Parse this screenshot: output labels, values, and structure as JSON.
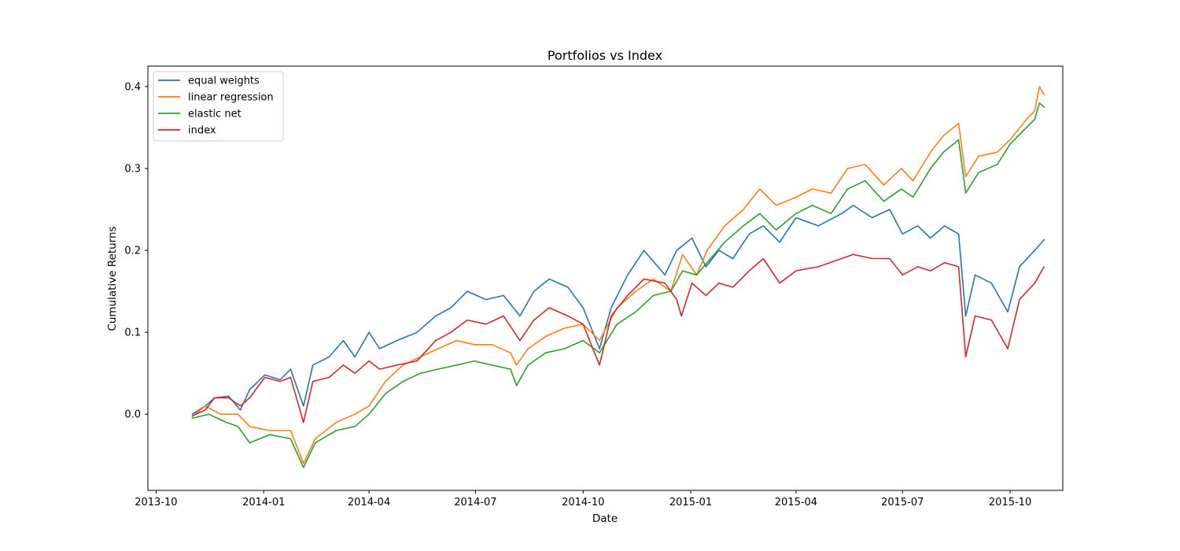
{
  "chart_data": {
    "type": "line",
    "title": "Portfolios vs Index",
    "xlabel": "Date",
    "ylabel": "Cumulative Returns",
    "x_range": [
      "2013-09-24",
      "2015-11-15"
    ],
    "ylim": [
      -0.093,
      0.425
    ],
    "x_ticks": [
      {
        "date": "2013-10-01",
        "label": "2013-10"
      },
      {
        "date": "2014-01-01",
        "label": "2014-01"
      },
      {
        "date": "2014-04-01",
        "label": "2014-04"
      },
      {
        "date": "2014-07-01",
        "label": "2014-07"
      },
      {
        "date": "2014-10-01",
        "label": "2014-10"
      },
      {
        "date": "2015-01-01",
        "label": "2015-01"
      },
      {
        "date": "2015-04-01",
        "label": "2015-04"
      },
      {
        "date": "2015-07-01",
        "label": "2015-07"
      },
      {
        "date": "2015-10-01",
        "label": "2015-10"
      }
    ],
    "y_ticks": [
      {
        "value": 0.0,
        "label": "0.0"
      },
      {
        "value": 0.1,
        "label": "0.1"
      },
      {
        "value": 0.2,
        "label": "0.2"
      },
      {
        "value": 0.3,
        "label": "0.3"
      },
      {
        "value": 0.4,
        "label": "0.4"
      }
    ],
    "grid": false,
    "legend_position": "top-left",
    "series": [
      {
        "name": "equal weights",
        "color": "#1f77b4",
        "points": [
          [
            "2013-11-01",
            0.0
          ],
          [
            "2013-11-12",
            0.01
          ],
          [
            "2013-11-20",
            0.02
          ],
          [
            "2013-12-02",
            0.022
          ],
          [
            "2013-12-12",
            0.005
          ],
          [
            "2013-12-20",
            0.03
          ],
          [
            "2014-01-02",
            0.048
          ],
          [
            "2014-01-15",
            0.042
          ],
          [
            "2014-01-24",
            0.055
          ],
          [
            "2014-02-04",
            0.01
          ],
          [
            "2014-02-12",
            0.06
          ],
          [
            "2014-02-26",
            0.07
          ],
          [
            "2014-03-10",
            0.09
          ],
          [
            "2014-03-20",
            0.07
          ],
          [
            "2014-04-01",
            0.1
          ],
          [
            "2014-04-10",
            0.08
          ],
          [
            "2014-04-25",
            0.09
          ],
          [
            "2014-05-12",
            0.1
          ],
          [
            "2014-05-28",
            0.12
          ],
          [
            "2014-06-10",
            0.13
          ],
          [
            "2014-06-24",
            0.15
          ],
          [
            "2014-07-10",
            0.14
          ],
          [
            "2014-07-25",
            0.145
          ],
          [
            "2014-08-08",
            0.12
          ],
          [
            "2014-08-20",
            0.15
          ],
          [
            "2014-09-02",
            0.165
          ],
          [
            "2014-09-18",
            0.155
          ],
          [
            "2014-10-01",
            0.13
          ],
          [
            "2014-10-15",
            0.08
          ],
          [
            "2014-10-25",
            0.13
          ],
          [
            "2014-11-08",
            0.17
          ],
          [
            "2014-11-22",
            0.2
          ],
          [
            "2014-12-10",
            0.17
          ],
          [
            "2014-12-20",
            0.2
          ],
          [
            "2015-01-02",
            0.215
          ],
          [
            "2015-01-14",
            0.18
          ],
          [
            "2015-01-25",
            0.2
          ],
          [
            "2015-02-06",
            0.19
          ],
          [
            "2015-02-20",
            0.22
          ],
          [
            "2015-03-04",
            0.23
          ],
          [
            "2015-03-18",
            0.21
          ],
          [
            "2015-04-01",
            0.24
          ],
          [
            "2015-04-20",
            0.23
          ],
          [
            "2015-05-10",
            0.245
          ],
          [
            "2015-05-20",
            0.255
          ],
          [
            "2015-06-05",
            0.24
          ],
          [
            "2015-06-20",
            0.25
          ],
          [
            "2015-07-01",
            0.22
          ],
          [
            "2015-07-14",
            0.23
          ],
          [
            "2015-07-25",
            0.215
          ],
          [
            "2015-08-06",
            0.23
          ],
          [
            "2015-08-18",
            0.22
          ],
          [
            "2015-08-24",
            0.12
          ],
          [
            "2015-09-01",
            0.17
          ],
          [
            "2015-09-15",
            0.16
          ],
          [
            "2015-09-29",
            0.125
          ],
          [
            "2015-10-09",
            0.18
          ],
          [
            "2015-10-22",
            0.2
          ],
          [
            "2015-10-30",
            0.213
          ]
        ]
      },
      {
        "name": "linear regression",
        "color": "#ff7f0e",
        "points": [
          [
            "2013-11-01",
            -0.003
          ],
          [
            "2013-11-12",
            0.01
          ],
          [
            "2013-11-25",
            0.0
          ],
          [
            "2013-12-10",
            0.0
          ],
          [
            "2013-12-20",
            -0.015
          ],
          [
            "2014-01-06",
            -0.02
          ],
          [
            "2014-01-24",
            -0.02
          ],
          [
            "2014-02-04",
            -0.06
          ],
          [
            "2014-02-14",
            -0.03
          ],
          [
            "2014-03-04",
            -0.01
          ],
          [
            "2014-03-20",
            0.0
          ],
          [
            "2014-04-01",
            0.01
          ],
          [
            "2014-04-15",
            0.04
          ],
          [
            "2014-04-30",
            0.06
          ],
          [
            "2014-05-15",
            0.07
          ],
          [
            "2014-05-30",
            0.08
          ],
          [
            "2014-06-15",
            0.09
          ],
          [
            "2014-06-30",
            0.085
          ],
          [
            "2014-07-15",
            0.085
          ],
          [
            "2014-07-31",
            0.075
          ],
          [
            "2014-08-05",
            0.06
          ],
          [
            "2014-08-15",
            0.08
          ],
          [
            "2014-08-30",
            0.095
          ],
          [
            "2014-09-15",
            0.105
          ],
          [
            "2014-10-01",
            0.11
          ],
          [
            "2014-10-15",
            0.09
          ],
          [
            "2014-10-30",
            0.13
          ],
          [
            "2014-11-15",
            0.15
          ],
          [
            "2014-11-30",
            0.165
          ],
          [
            "2014-12-15",
            0.15
          ],
          [
            "2014-12-25",
            0.195
          ],
          [
            "2015-01-06",
            0.17
          ],
          [
            "2015-01-15",
            0.2
          ],
          [
            "2015-01-30",
            0.23
          ],
          [
            "2015-02-15",
            0.25
          ],
          [
            "2015-03-01",
            0.275
          ],
          [
            "2015-03-15",
            0.255
          ],
          [
            "2015-04-01",
            0.265
          ],
          [
            "2015-04-15",
            0.275
          ],
          [
            "2015-05-01",
            0.27
          ],
          [
            "2015-05-15",
            0.3
          ],
          [
            "2015-05-30",
            0.305
          ],
          [
            "2015-06-15",
            0.28
          ],
          [
            "2015-06-30",
            0.3
          ],
          [
            "2015-07-10",
            0.285
          ],
          [
            "2015-07-25",
            0.32
          ],
          [
            "2015-08-05",
            0.34
          ],
          [
            "2015-08-18",
            0.355
          ],
          [
            "2015-08-24",
            0.29
          ],
          [
            "2015-09-04",
            0.315
          ],
          [
            "2015-09-20",
            0.32
          ],
          [
            "2015-10-01",
            0.335
          ],
          [
            "2015-10-15",
            0.36
          ],
          [
            "2015-10-22",
            0.37
          ],
          [
            "2015-10-26",
            0.4
          ],
          [
            "2015-10-30",
            0.39
          ]
        ]
      },
      {
        "name": "elastic net",
        "color": "#2ca02c",
        "points": [
          [
            "2013-11-01",
            -0.005
          ],
          [
            "2013-11-15",
            0.0
          ],
          [
            "2013-11-30",
            -0.01
          ],
          [
            "2013-12-10",
            -0.015
          ],
          [
            "2013-12-20",
            -0.035
          ],
          [
            "2014-01-06",
            -0.025
          ],
          [
            "2014-01-24",
            -0.03
          ],
          [
            "2014-02-04",
            -0.065
          ],
          [
            "2014-02-14",
            -0.035
          ],
          [
            "2014-03-04",
            -0.02
          ],
          [
            "2014-03-20",
            -0.015
          ],
          [
            "2014-04-01",
            0.0
          ],
          [
            "2014-04-15",
            0.025
          ],
          [
            "2014-04-30",
            0.04
          ],
          [
            "2014-05-15",
            0.05
          ],
          [
            "2014-05-30",
            0.055
          ],
          [
            "2014-06-15",
            0.06
          ],
          [
            "2014-06-30",
            0.065
          ],
          [
            "2014-07-15",
            0.06
          ],
          [
            "2014-07-31",
            0.055
          ],
          [
            "2014-08-05",
            0.035
          ],
          [
            "2014-08-15",
            0.06
          ],
          [
            "2014-08-30",
            0.075
          ],
          [
            "2014-09-15",
            0.08
          ],
          [
            "2014-10-01",
            0.09
          ],
          [
            "2014-10-15",
            0.075
          ],
          [
            "2014-10-30",
            0.11
          ],
          [
            "2014-11-15",
            0.125
          ],
          [
            "2014-11-30",
            0.145
          ],
          [
            "2014-12-15",
            0.15
          ],
          [
            "2014-12-25",
            0.175
          ],
          [
            "2015-01-06",
            0.17
          ],
          [
            "2015-01-15",
            0.185
          ],
          [
            "2015-01-30",
            0.21
          ],
          [
            "2015-02-15",
            0.23
          ],
          [
            "2015-03-01",
            0.245
          ],
          [
            "2015-03-15",
            0.225
          ],
          [
            "2015-04-01",
            0.245
          ],
          [
            "2015-04-15",
            0.255
          ],
          [
            "2015-05-01",
            0.245
          ],
          [
            "2015-05-15",
            0.275
          ],
          [
            "2015-05-30",
            0.285
          ],
          [
            "2015-06-15",
            0.26
          ],
          [
            "2015-06-30",
            0.275
          ],
          [
            "2015-07-10",
            0.265
          ],
          [
            "2015-07-25",
            0.3
          ],
          [
            "2015-08-05",
            0.32
          ],
          [
            "2015-08-18",
            0.335
          ],
          [
            "2015-08-24",
            0.27
          ],
          [
            "2015-09-04",
            0.295
          ],
          [
            "2015-09-20",
            0.305
          ],
          [
            "2015-10-01",
            0.33
          ],
          [
            "2015-10-15",
            0.35
          ],
          [
            "2015-10-22",
            0.36
          ],
          [
            "2015-10-26",
            0.38
          ],
          [
            "2015-10-30",
            0.375
          ]
        ]
      },
      {
        "name": "index",
        "color": "#d62728",
        "points": [
          [
            "2013-11-01",
            -0.002
          ],
          [
            "2013-11-12",
            0.005
          ],
          [
            "2013-11-20",
            0.02
          ],
          [
            "2013-12-02",
            0.02
          ],
          [
            "2013-12-12",
            0.01
          ],
          [
            "2013-12-20",
            0.02
          ],
          [
            "2014-01-02",
            0.045
          ],
          [
            "2014-01-15",
            0.04
          ],
          [
            "2014-01-24",
            0.045
          ],
          [
            "2014-02-04",
            -0.01
          ],
          [
            "2014-02-12",
            0.04
          ],
          [
            "2014-02-26",
            0.045
          ],
          [
            "2014-03-10",
            0.06
          ],
          [
            "2014-03-20",
            0.05
          ],
          [
            "2014-04-01",
            0.065
          ],
          [
            "2014-04-10",
            0.055
          ],
          [
            "2014-04-25",
            0.06
          ],
          [
            "2014-05-12",
            0.065
          ],
          [
            "2014-05-28",
            0.09
          ],
          [
            "2014-06-10",
            0.1
          ],
          [
            "2014-06-24",
            0.115
          ],
          [
            "2014-07-10",
            0.11
          ],
          [
            "2014-07-25",
            0.12
          ],
          [
            "2014-08-08",
            0.09
          ],
          [
            "2014-08-20",
            0.115
          ],
          [
            "2014-09-02",
            0.13
          ],
          [
            "2014-09-18",
            0.12
          ],
          [
            "2014-10-01",
            0.11
          ],
          [
            "2014-10-15",
            0.06
          ],
          [
            "2014-10-25",
            0.12
          ],
          [
            "2014-11-08",
            0.145
          ],
          [
            "2014-11-22",
            0.165
          ],
          [
            "2014-12-10",
            0.16
          ],
          [
            "2014-12-20",
            0.14
          ],
          [
            "2014-12-24",
            0.12
          ],
          [
            "2015-01-02",
            0.16
          ],
          [
            "2015-01-14",
            0.145
          ],
          [
            "2015-01-25",
            0.16
          ],
          [
            "2015-02-06",
            0.155
          ],
          [
            "2015-02-20",
            0.175
          ],
          [
            "2015-03-04",
            0.19
          ],
          [
            "2015-03-18",
            0.16
          ],
          [
            "2015-04-01",
            0.175
          ],
          [
            "2015-04-20",
            0.18
          ],
          [
            "2015-05-10",
            0.19
          ],
          [
            "2015-05-20",
            0.195
          ],
          [
            "2015-06-05",
            0.19
          ],
          [
            "2015-06-20",
            0.19
          ],
          [
            "2015-07-01",
            0.17
          ],
          [
            "2015-07-14",
            0.18
          ],
          [
            "2015-07-25",
            0.175
          ],
          [
            "2015-08-06",
            0.185
          ],
          [
            "2015-08-18",
            0.18
          ],
          [
            "2015-08-24",
            0.07
          ],
          [
            "2015-09-01",
            0.12
          ],
          [
            "2015-09-15",
            0.115
          ],
          [
            "2015-09-29",
            0.08
          ],
          [
            "2015-10-09",
            0.14
          ],
          [
            "2015-10-22",
            0.16
          ],
          [
            "2015-10-30",
            0.18
          ]
        ]
      }
    ]
  }
}
